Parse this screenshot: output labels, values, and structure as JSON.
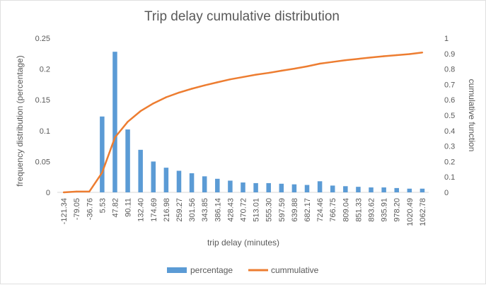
{
  "chart_data": {
    "type": "bar",
    "title": "Trip delay cumulative distribution",
    "xlabel": "trip delay (minutes)",
    "ylabel": "frequency distribution (percentage)",
    "y2label": "cumulative function",
    "categories": [
      "-121.34",
      "-79.05",
      "-36.76",
      "5.53",
      "47.82",
      "90.11",
      "132.40",
      "174.69",
      "216.98",
      "259.27",
      "301.56",
      "343.85",
      "386.14",
      "428.43",
      "470.72",
      "513.01",
      "555.30",
      "597.59",
      "639.88",
      "682.17",
      "724.46",
      "766.75",
      "809.04",
      "851.33",
      "893.62",
      "935.91",
      "978.20",
      "1020.49",
      "1062.78"
    ],
    "ylim": [
      0,
      0.25
    ],
    "yticks": [
      "0",
      "0.05",
      "0.1",
      "0.15",
      "0.2",
      "0.25"
    ],
    "y2lim": [
      0,
      1
    ],
    "y2ticks": [
      "0",
      "0.1",
      "0.2",
      "0.3",
      "0.4",
      "0.5",
      "0.6",
      "0.7",
      "0.8",
      "0.9",
      "1"
    ],
    "series": [
      {
        "name": "percentage",
        "type": "bar",
        "color": "#5b9bd5",
        "values": [
          0,
          0,
          0,
          0.123,
          0.228,
          0.102,
          0.069,
          0.05,
          0.04,
          0.035,
          0.031,
          0.026,
          0.022,
          0.019,
          0.016,
          0.015,
          0.015,
          0.014,
          0.013,
          0.012,
          0.018,
          0.011,
          0.01,
          0.009,
          0.008,
          0.008,
          0.007,
          0.006,
          0.006
        ]
      },
      {
        "name": "cummulative",
        "type": "line",
        "axis": "secondary",
        "color": "#ed7d31",
        "values": [
          0,
          0.005,
          0.005,
          0.128,
          0.356,
          0.458,
          0.527,
          0.577,
          0.617,
          0.647,
          0.672,
          0.694,
          0.714,
          0.733,
          0.748,
          0.763,
          0.775,
          0.789,
          0.802,
          0.817,
          0.835,
          0.846,
          0.857,
          0.866,
          0.875,
          0.883,
          0.89,
          0.897,
          0.907
        ]
      }
    ],
    "grid": false,
    "legend_position": "bottom"
  }
}
